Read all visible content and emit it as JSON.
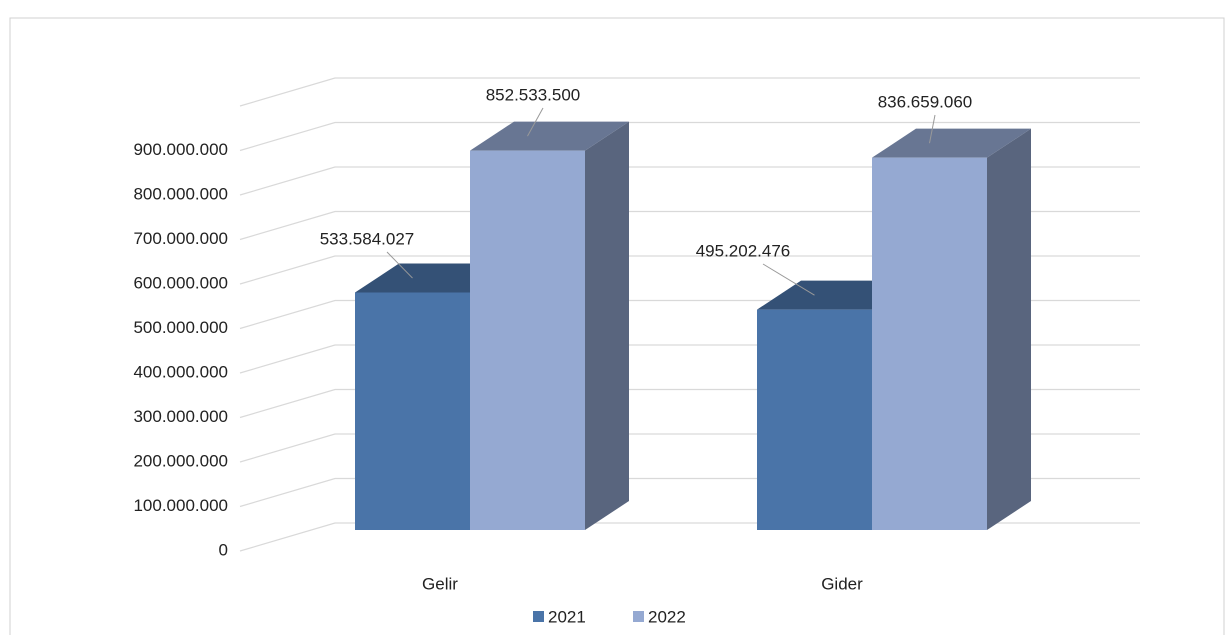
{
  "chart_data": {
    "type": "bar",
    "categories": [
      "Gelir",
      "Gider"
    ],
    "series": [
      {
        "name": "2021",
        "color": "#4a74a8",
        "values": [
          533584027,
          495202476
        ],
        "value_labels": [
          "533.584.027",
          "495.202.476"
        ]
      },
      {
        "name": "2022",
        "color": "#95a9d2",
        "values": [
          852533500,
          836659060
        ],
        "value_labels": [
          "852.533.500",
          "836.659.060"
        ]
      }
    ],
    "ylim": [
      0,
      1000000000
    ],
    "yticks": [
      0,
      {
        "value": 100000000,
        "label": "100.000.000"
      },
      {
        "value": 200000000,
        "label": "200.000.000"
      },
      {
        "value": 300000000,
        "label": "300.000.000"
      },
      {
        "value": 400000000,
        "label": "400.000.000"
      },
      {
        "value": 500000000,
        "label": "500.000.000"
      },
      {
        "value": 600000000,
        "label": "600.000.000"
      },
      {
        "value": 700000000,
        "label": "700.000.000"
      },
      {
        "value": 800000000,
        "label": "800.000.000"
      },
      {
        "value": 900000000,
        "label": "900.000.000"
      }
    ],
    "grid": true,
    "legend": "bottom"
  }
}
